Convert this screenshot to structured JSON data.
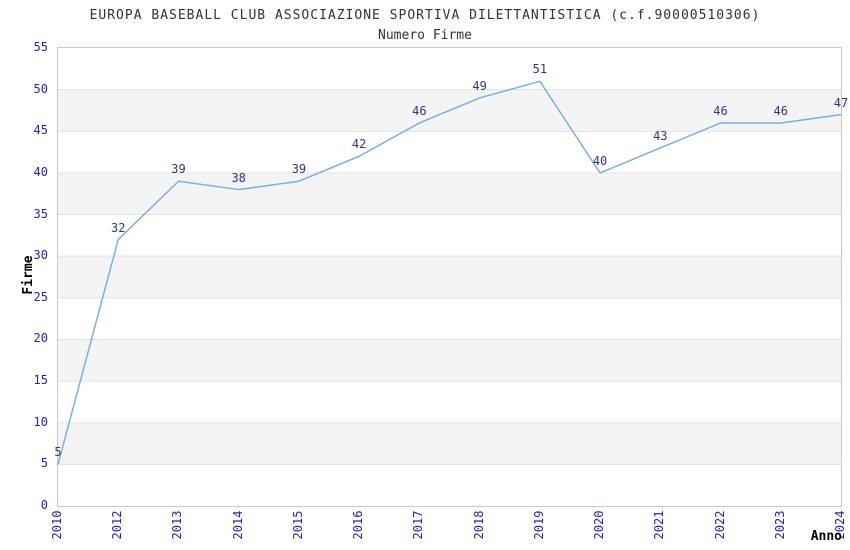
{
  "chart_data": {
    "type": "line",
    "title": "EUROPA BASEBALL CLUB ASSOCIAZIONE SPORTIVA DILETTANTISTICA (c.f.90000510306)",
    "subtitle": "Numero Firme",
    "xlabel": "Anno",
    "ylabel": "Firme",
    "categories": [
      "2010",
      "2012",
      "2013",
      "2014",
      "2015",
      "2016",
      "2017",
      "2018",
      "2019",
      "2020",
      "2021",
      "2022",
      "2023",
      "2024"
    ],
    "values": [
      5,
      32,
      39,
      38,
      39,
      42,
      46,
      49,
      51,
      40,
      43,
      46,
      46,
      47
    ],
    "ylim": [
      0,
      55
    ],
    "ytick_step": 5,
    "yticks": [
      0,
      5,
      10,
      15,
      20,
      25,
      30,
      35,
      40,
      45,
      50,
      55
    ],
    "grid": "horizontal-bands",
    "legend": "none",
    "point_labels_visible": true,
    "colors": {
      "line": "#7aaee8",
      "tick_label": "#2222cc",
      "point_label": "#333388",
      "band": "#f4f4f4",
      "gridline": "#e2e2e2",
      "plot_border": "#c8c8c8",
      "title_text": "#333333",
      "axis_title": "#000000"
    }
  }
}
